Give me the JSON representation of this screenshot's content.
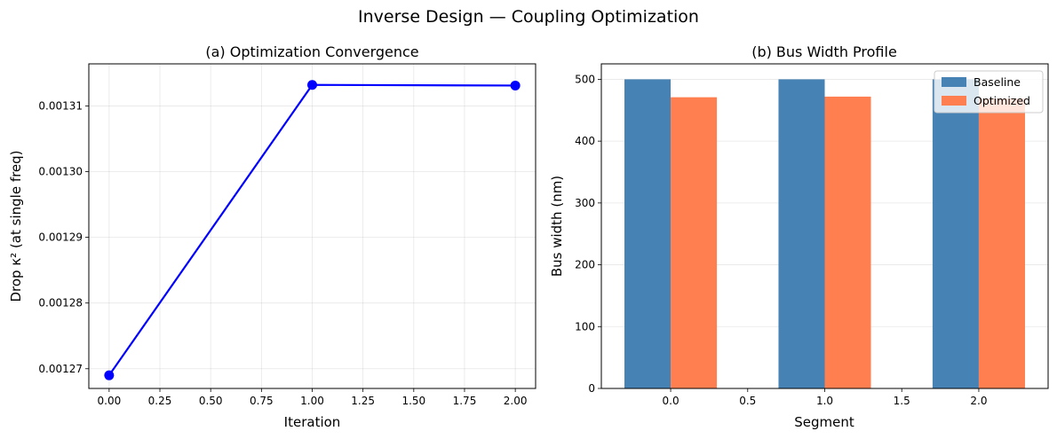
{
  "figure": {
    "title": "Inverse Design — Coupling Optimization"
  },
  "chart_data": [
    {
      "type": "line",
      "title": "(a) Optimization Convergence",
      "xlabel": "Iteration",
      "ylabel": "Drop κ² (at single freq)",
      "x": [
        0,
        1,
        2
      ],
      "y": [
        0.001269,
        0.0013132,
        0.0013131
      ],
      "xlim": [
        -0.1,
        2.1
      ],
      "ylim": [
        0.001267,
        0.0013164
      ],
      "xticks": [
        0.0,
        0.25,
        0.5,
        0.75,
        1.0,
        1.25,
        1.5,
        1.75,
        2.0
      ],
      "xtick_labels": [
        "0.00",
        "0.25",
        "0.50",
        "0.75",
        "1.00",
        "1.25",
        "1.50",
        "1.75",
        "2.00"
      ],
      "yticks": [
        0.00127,
        0.00128,
        0.00129,
        0.0013,
        0.00131
      ],
      "ytick_labels": [
        "0.00127",
        "0.00128",
        "0.00129",
        "0.00130",
        "0.00131"
      ],
      "color": "#0000ff",
      "grid": true
    },
    {
      "type": "bar",
      "title": "(b) Bus Width Profile",
      "xlabel": "Segment",
      "ylabel": "Bus width (nm)",
      "categories": [
        0,
        1,
        2
      ],
      "series": [
        {
          "name": "Baseline",
          "values": [
            500,
            500,
            500
          ],
          "color": "#4682b4"
        },
        {
          "name": "Optimized",
          "values": [
            471,
            472,
            469
          ],
          "color": "#ff7f50"
        }
      ],
      "xlim": [
        -0.45,
        2.45
      ],
      "ylim": [
        0,
        525
      ],
      "xticks": [
        0.0,
        0.5,
        1.0,
        1.5,
        2.0
      ],
      "xtick_labels": [
        "0.0",
        "0.5",
        "1.0",
        "1.5",
        "2.0"
      ],
      "yticks": [
        0,
        100,
        200,
        300,
        400,
        500
      ],
      "ytick_labels": [
        "0",
        "100",
        "200",
        "300",
        "400",
        "500"
      ],
      "legend": "top-right",
      "grid": true
    }
  ]
}
